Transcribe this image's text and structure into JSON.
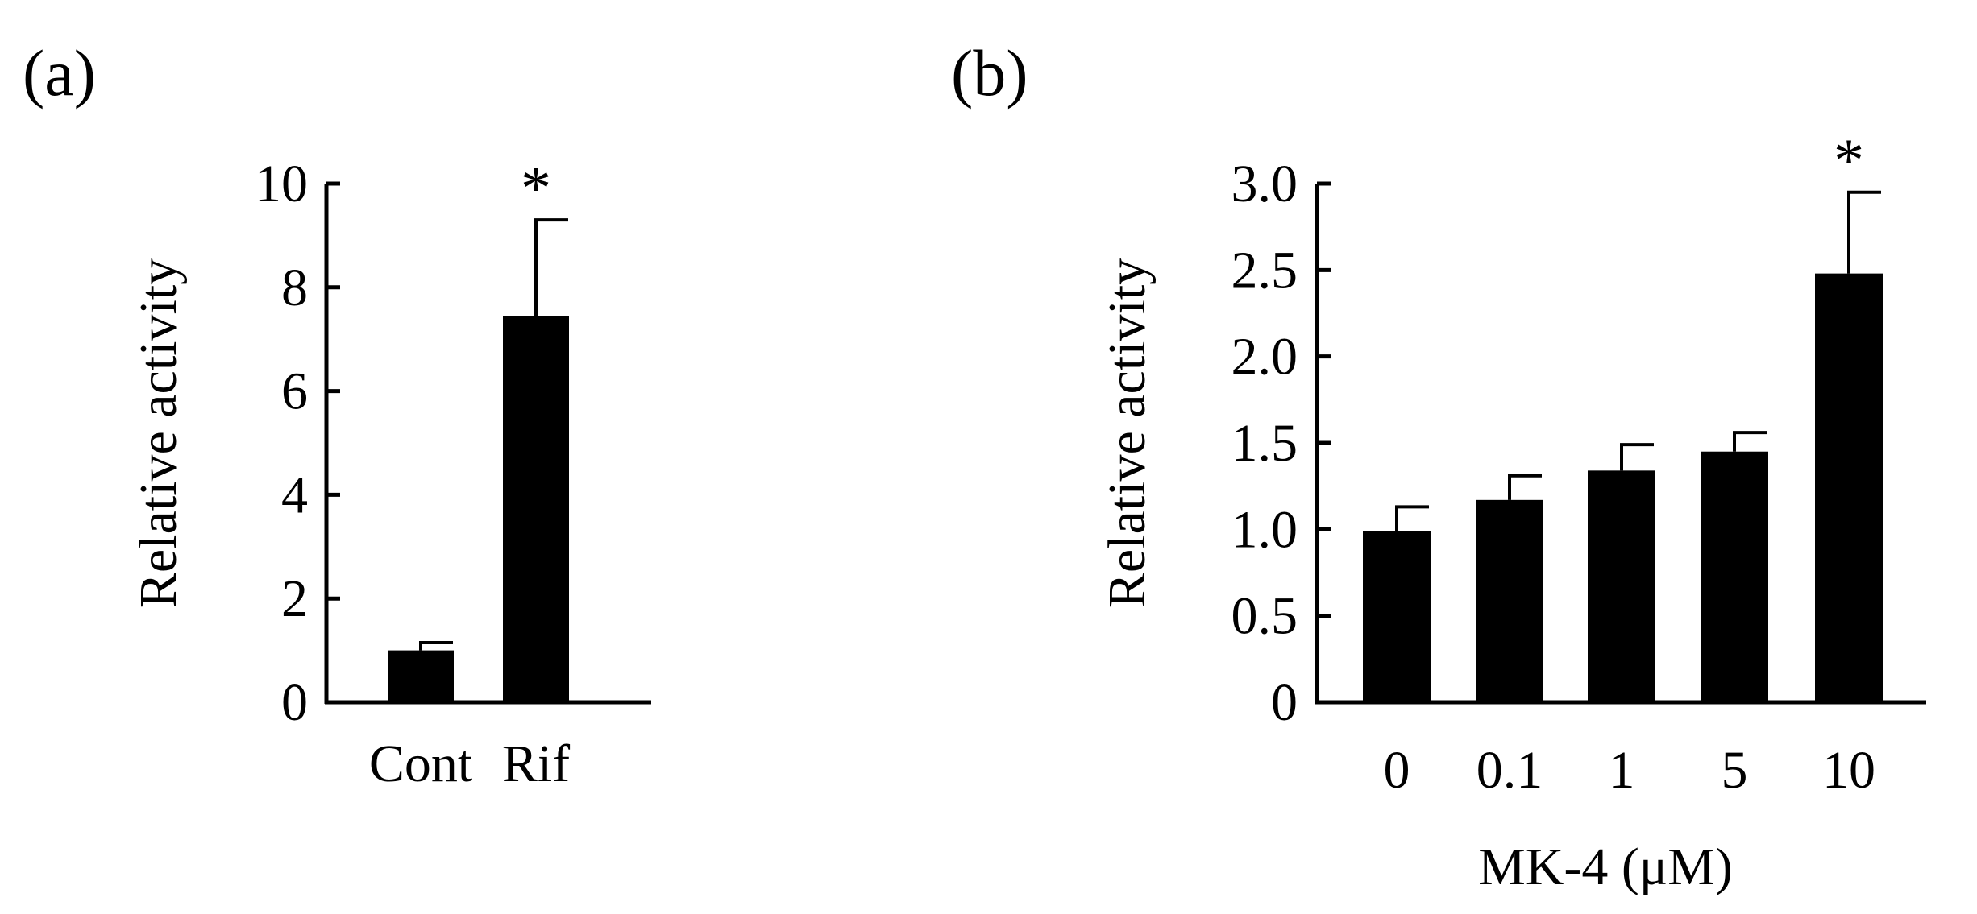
{
  "chart_data": [
    {
      "type": "bar",
      "panel_label": "(a)",
      "categories": [
        "Cont",
        "Rif"
      ],
      "values": [
        1.0,
        7.45
      ],
      "errors": [
        0.15,
        1.85
      ],
      "annotations": [
        "",
        "*"
      ],
      "xlabel": "",
      "ylabel": "Relative activity",
      "ylim": [
        0,
        10
      ],
      "yticks": [
        0,
        2,
        4,
        6,
        8,
        10
      ],
      "ytick_labels": [
        "0",
        "2",
        "4",
        "6",
        "8",
        "10"
      ],
      "color": "#000000",
      "grid": false
    },
    {
      "type": "bar",
      "panel_label": "(b)",
      "categories": [
        "0",
        "0.1",
        "1",
        "5",
        "10"
      ],
      "values": [
        0.99,
        1.17,
        1.34,
        1.45,
        2.48
      ],
      "errors": [
        0.14,
        0.14,
        0.15,
        0.11,
        0.47
      ],
      "annotations": [
        "",
        "",
        "",
        "",
        "*"
      ],
      "xlabel": "MK-4 (μM)",
      "ylabel": "Relative activity",
      "ylim": [
        0,
        3.0
      ],
      "yticks": [
        0,
        0.5,
        1.0,
        1.5,
        2.0,
        2.5,
        3.0
      ],
      "ytick_labels": [
        "0",
        "0.5",
        "1.0",
        "1.5",
        "2.0",
        "2.5",
        "3.0"
      ],
      "color": "#000000",
      "grid": false
    }
  ]
}
